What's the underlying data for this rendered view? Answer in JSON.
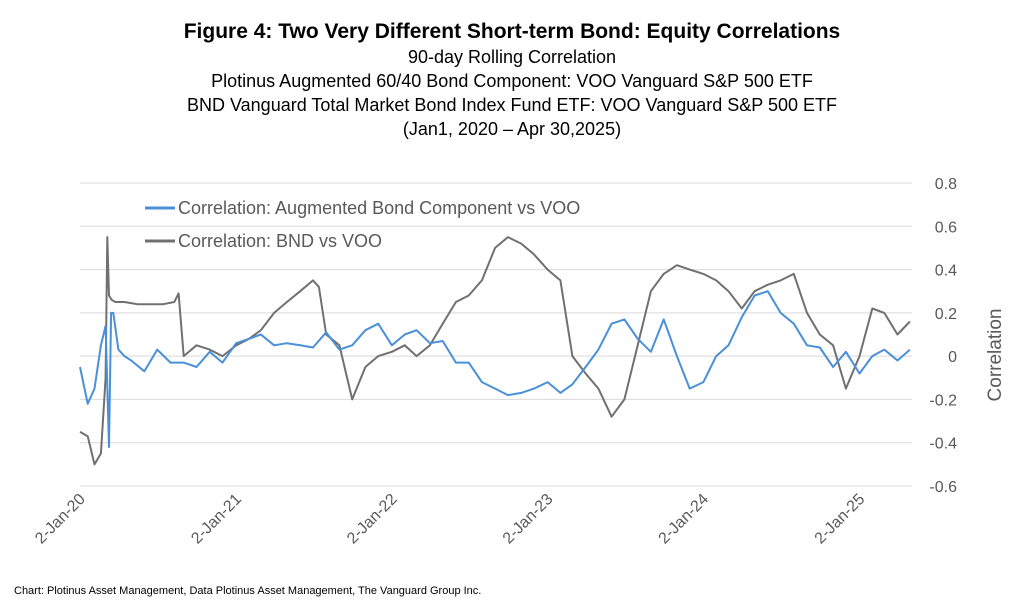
{
  "header": {
    "title": "Figure 4: Two Very Different Short-term Bond: Equity Correlations",
    "subtitles": [
      "90-day Rolling Correlation",
      "Plotinus Augmented 60/40 Bond Component: VOO Vanguard S&P 500 ETF",
      "BND Vanguard Total Market Bond Index Fund ETF: VOO Vanguard S&P 500 ETF",
      "(Jan1, 2020 – Apr 30,2025)"
    ]
  },
  "footer": {
    "source": "Chart: Plotinus Asset Management, Data Plotinus Asset Management, The Vanguard Group Inc."
  },
  "chart_data": {
    "type": "line",
    "ylabel": "Correlation",
    "ylim": [
      -0.6,
      0.8
    ],
    "yticks": [
      0.8,
      0.6,
      0.4,
      0.2,
      0,
      -0.2,
      -0.4,
      -0.6
    ],
    "xlim": [
      "2020-01-02",
      "2025-04-30"
    ],
    "xticks": [
      "2-Jan-20",
      "2-Jan-21",
      "2-Jan-22",
      "2-Jan-23",
      "2-Jan-24",
      "2-Jan-25"
    ],
    "grid": "horizontal",
    "legend": "top-left",
    "series": [
      {
        "name": "Correlation: Augmented Bond Component vs VOO",
        "color": "#4a90d9",
        "x": [
          "2020-01-02",
          "2020-01-20",
          "2020-02-05",
          "2020-02-20",
          "2020-03-02",
          "2020-03-10",
          "2020-03-15",
          "2020-03-20",
          "2020-04-01",
          "2020-04-15",
          "2020-05-01",
          "2020-06-01",
          "2020-07-01",
          "2020-08-01",
          "2020-09-01",
          "2020-10-01",
          "2020-11-01",
          "2020-12-01",
          "2021-01-02",
          "2021-02-01",
          "2021-03-01",
          "2021-04-01",
          "2021-05-01",
          "2021-06-01",
          "2021-07-01",
          "2021-08-01",
          "2021-09-01",
          "2021-10-01",
          "2021-11-01",
          "2021-12-01",
          "2022-01-02",
          "2022-02-01",
          "2022-03-01",
          "2022-04-01",
          "2022-05-01",
          "2022-06-01",
          "2022-07-01",
          "2022-08-01",
          "2022-09-01",
          "2022-10-01",
          "2022-11-01",
          "2022-12-01",
          "2023-01-02",
          "2023-02-01",
          "2023-03-01",
          "2023-04-01",
          "2023-05-01",
          "2023-06-01",
          "2023-07-01",
          "2023-08-01",
          "2023-09-01",
          "2023-10-01",
          "2023-11-01",
          "2023-12-01",
          "2024-01-02",
          "2024-02-01",
          "2024-03-01",
          "2024-04-01",
          "2024-05-01",
          "2024-06-01",
          "2024-07-01",
          "2024-08-01",
          "2024-09-01",
          "2024-10-01",
          "2024-11-01",
          "2024-12-01",
          "2025-01-02",
          "2025-02-01",
          "2025-03-01",
          "2025-04-01",
          "2025-04-30"
        ],
        "y": [
          -0.05,
          -0.22,
          -0.15,
          0.05,
          0.14,
          -0.42,
          0.2,
          0.2,
          0.03,
          0.0,
          -0.02,
          -0.07,
          0.03,
          -0.03,
          -0.03,
          -0.05,
          0.02,
          -0.03,
          0.06,
          0.08,
          0.1,
          0.05,
          0.06,
          0.05,
          0.04,
          0.11,
          0.03,
          0.05,
          0.12,
          0.15,
          0.05,
          0.1,
          0.12,
          0.06,
          0.07,
          -0.03,
          -0.03,
          -0.12,
          -0.15,
          -0.18,
          -0.17,
          -0.15,
          -0.12,
          -0.17,
          -0.13,
          -0.05,
          0.03,
          0.15,
          0.17,
          0.08,
          0.02,
          0.17,
          0.0,
          -0.15,
          -0.12,
          0.0,
          0.05,
          0.18,
          0.28,
          0.3,
          0.2,
          0.15,
          0.05,
          0.04,
          -0.05,
          0.02,
          -0.08,
          0.0,
          0.03,
          -0.02,
          0.03
        ]
      },
      {
        "name": "Correlation: BND vs VOO",
        "color": "#707070",
        "x": [
          "2020-01-02",
          "2020-01-20",
          "2020-02-05",
          "2020-02-20",
          "2020-03-02",
          "2020-03-06",
          "2020-03-10",
          "2020-03-16",
          "2020-03-25",
          "2020-04-15",
          "2020-05-15",
          "2020-06-15",
          "2020-07-15",
          "2020-08-10",
          "2020-08-20",
          "2020-09-01",
          "2020-10-01",
          "2020-11-01",
          "2020-12-01",
          "2021-01-02",
          "2021-02-01",
          "2021-03-01",
          "2021-04-01",
          "2021-05-01",
          "2021-06-01",
          "2021-07-01",
          "2021-07-15",
          "2021-08-01",
          "2021-09-01",
          "2021-10-01",
          "2021-11-01",
          "2021-12-01",
          "2022-01-02",
          "2022-02-01",
          "2022-03-01",
          "2022-04-01",
          "2022-05-01",
          "2022-06-01",
          "2022-07-01",
          "2022-08-01",
          "2022-09-01",
          "2022-10-01",
          "2022-11-01",
          "2022-12-01",
          "2023-01-02",
          "2023-02-01",
          "2023-03-01",
          "2023-04-01",
          "2023-05-01",
          "2023-06-01",
          "2023-07-01",
          "2023-08-01",
          "2023-09-01",
          "2023-10-01",
          "2023-11-01",
          "2023-12-01",
          "2024-01-02",
          "2024-02-01",
          "2024-03-01",
          "2024-04-01",
          "2024-05-01",
          "2024-06-01",
          "2024-07-01",
          "2024-08-01",
          "2024-09-01",
          "2024-10-01",
          "2024-11-01",
          "2024-12-01",
          "2025-01-02",
          "2025-02-01",
          "2025-03-01",
          "2025-04-01",
          "2025-04-30"
        ],
        "y": [
          -0.35,
          -0.37,
          -0.5,
          -0.45,
          -0.1,
          0.55,
          0.28,
          0.26,
          0.25,
          0.25,
          0.24,
          0.24,
          0.24,
          0.25,
          0.29,
          0.0,
          0.05,
          0.03,
          0.0,
          0.05,
          0.08,
          0.12,
          0.2,
          0.25,
          0.3,
          0.35,
          0.32,
          0.1,
          0.05,
          -0.2,
          -0.05,
          0.0,
          0.02,
          0.05,
          0.0,
          0.05,
          0.15,
          0.25,
          0.28,
          0.35,
          0.5,
          0.55,
          0.52,
          0.47,
          0.4,
          0.35,
          0.0,
          -0.08,
          -0.15,
          -0.28,
          -0.2,
          0.05,
          0.3,
          0.38,
          0.42,
          0.4,
          0.38,
          0.35,
          0.3,
          0.22,
          0.3,
          0.33,
          0.35,
          0.38,
          0.2,
          0.1,
          0.05,
          -0.15,
          0.0,
          0.22,
          0.2,
          0.1,
          0.16
        ]
      }
    ]
  }
}
